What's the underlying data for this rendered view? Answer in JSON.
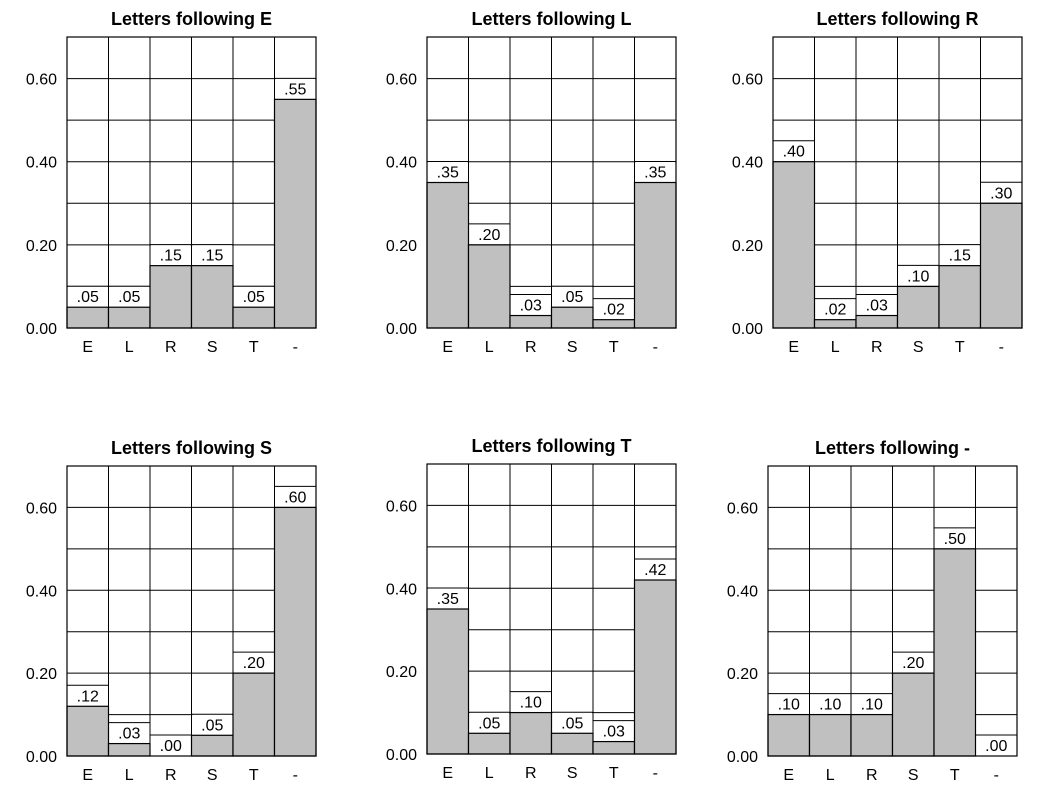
{
  "colors": {
    "bar_fill": "#c0c0c0",
    "line": "#000000",
    "background": "#ffffff"
  },
  "chart_data": [
    {
      "type": "bar",
      "title": "Letters following E",
      "categories": [
        "E",
        "L",
        "R",
        "S",
        "T",
        "-"
      ],
      "values": [
        0.05,
        0.05,
        0.15,
        0.15,
        0.05,
        0.55
      ],
      "value_labels": [
        ".05",
        ".05",
        ".15",
        ".15",
        ".05",
        ".55"
      ],
      "ylim": [
        0,
        0.7
      ],
      "yticks": [
        0.0,
        0.2,
        0.4,
        0.6
      ],
      "ytick_labels": [
        "0.00",
        "0.20",
        "0.40",
        "0.60"
      ],
      "grid": true,
      "xlabel": "",
      "ylabel": ""
    },
    {
      "type": "bar",
      "title": "Letters following L",
      "categories": [
        "E",
        "L",
        "R",
        "S",
        "T",
        "-"
      ],
      "values": [
        0.35,
        0.2,
        0.03,
        0.05,
        0.02,
        0.35
      ],
      "value_labels": [
        ".35",
        ".20",
        ".03",
        ".05",
        ".02",
        ".35"
      ],
      "ylim": [
        0,
        0.7
      ],
      "yticks": [
        0.0,
        0.2,
        0.4,
        0.6
      ],
      "ytick_labels": [
        "0.00",
        "0.20",
        "0.40",
        "0.60"
      ],
      "grid": true,
      "xlabel": "",
      "ylabel": ""
    },
    {
      "type": "bar",
      "title": "Letters following R",
      "categories": [
        "E",
        "L",
        "R",
        "S",
        "T",
        "-"
      ],
      "values": [
        0.4,
        0.02,
        0.03,
        0.1,
        0.15,
        0.3
      ],
      "value_labels": [
        ".40",
        ".02",
        ".03",
        ".10",
        ".15",
        ".30"
      ],
      "ylim": [
        0,
        0.7
      ],
      "yticks": [
        0.0,
        0.2,
        0.4,
        0.6
      ],
      "ytick_labels": [
        "0.00",
        "0.20",
        "0.40",
        "0.60"
      ],
      "grid": true,
      "xlabel": "",
      "ylabel": ""
    },
    {
      "type": "bar",
      "title": "Letters following S",
      "categories": [
        "E",
        "L",
        "R",
        "S",
        "T",
        "-"
      ],
      "values": [
        0.12,
        0.03,
        0.0,
        0.05,
        0.2,
        0.6
      ],
      "value_labels": [
        ".12",
        ".03",
        ".00",
        ".05",
        ".20",
        ".60"
      ],
      "ylim": [
        0,
        0.7
      ],
      "yticks": [
        0.0,
        0.2,
        0.4,
        0.6
      ],
      "ytick_labels": [
        "0.00",
        "0.20",
        "0.40",
        "0.60"
      ],
      "grid": true,
      "xlabel": "",
      "ylabel": ""
    },
    {
      "type": "bar",
      "title": "Letters following T",
      "categories": [
        "E",
        "L",
        "R",
        "S",
        "T",
        "-"
      ],
      "values": [
        0.35,
        0.05,
        0.1,
        0.05,
        0.03,
        0.42
      ],
      "value_labels": [
        ".35",
        ".05",
        ".10",
        ".05",
        ".03",
        ".42"
      ],
      "ylim": [
        0,
        0.7
      ],
      "yticks": [
        0.0,
        0.2,
        0.4,
        0.6
      ],
      "ytick_labels": [
        "0.00",
        "0.20",
        "0.40",
        "0.60"
      ],
      "grid": true,
      "xlabel": "",
      "ylabel": ""
    },
    {
      "type": "bar",
      "title": "Letters following -",
      "categories": [
        "E",
        "L",
        "R",
        "S",
        "T",
        "-"
      ],
      "values": [
        0.1,
        0.1,
        0.1,
        0.2,
        0.5,
        0.0
      ],
      "value_labels": [
        ".10",
        ".10",
        ".10",
        ".20",
        ".50",
        ".00"
      ],
      "ylim": [
        0,
        0.7
      ],
      "yticks": [
        0.0,
        0.2,
        0.4,
        0.6
      ],
      "ytick_labels": [
        "0.00",
        "0.20",
        "0.40",
        "0.60"
      ],
      "grid": true,
      "xlabel": "",
      "ylabel": ""
    }
  ]
}
